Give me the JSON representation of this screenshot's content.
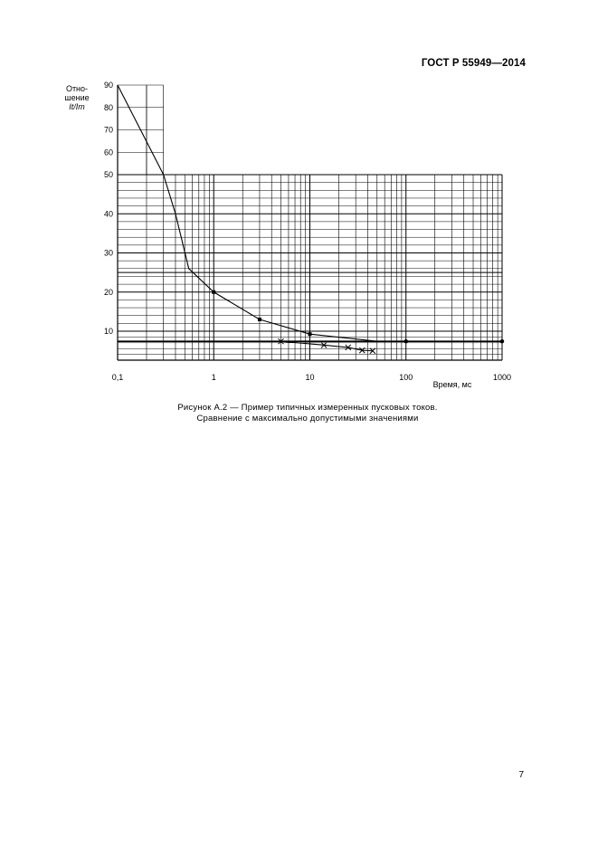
{
  "header": {
    "standard": "ГОСТ Р 55949—2014"
  },
  "footer": {
    "page_number": "7"
  },
  "caption": {
    "line1": "Рисунок  А.2 — Пример типичных измеренных пусковых токов.",
    "line2": "Сравнение с максимально допустимыми значениями"
  },
  "chart_data": {
    "type": "line",
    "ylabel_lines": [
      "Отно-",
      "шение",
      "It/Im"
    ],
    "xlabel": "Время, мс",
    "x_scale": "log",
    "xlim": [
      0.1,
      1000
    ],
    "ylim": [
      0,
      90
    ],
    "x_ticks": [
      {
        "value": 0.1,
        "label": "0,1"
      },
      {
        "value": 1,
        "label": "1"
      },
      {
        "value": 10,
        "label": "10"
      },
      {
        "value": 100,
        "label": "100"
      },
      {
        "value": 1000,
        "label": "1000"
      }
    ],
    "y_ticks": [
      10,
      20,
      30,
      40,
      50,
      60,
      70,
      80,
      90
    ],
    "grid": true,
    "series": [
      {
        "marker": "square",
        "x": [
          0.1,
          0.3,
          0.4,
          0.55,
          1,
          3,
          10,
          50
        ],
        "y": [
          90,
          50,
          40,
          26,
          20,
          13,
          9,
          6.5
        ],
        "marker_points": [
          [
            1,
            20
          ],
          [
            3,
            13
          ],
          [
            10,
            9
          ]
        ]
      },
      {
        "marker": "cross",
        "x": [
          5,
          14,
          25,
          35,
          45
        ],
        "y": [
          6.5,
          5.2,
          4.4,
          3.4,
          3.2
        ],
        "marker_points": [
          [
            5,
            6.5
          ],
          [
            14,
            5.2
          ],
          [
            25,
            4.4
          ],
          [
            35,
            3.4
          ],
          [
            45,
            3.2
          ]
        ]
      },
      {
        "marker": "circle",
        "x": [
          0.1,
          1000
        ],
        "y": [
          6.5,
          6.5
        ],
        "marker_points": [
          [
            100,
            6.5
          ],
          [
            1000,
            6.5
          ]
        ]
      }
    ]
  }
}
